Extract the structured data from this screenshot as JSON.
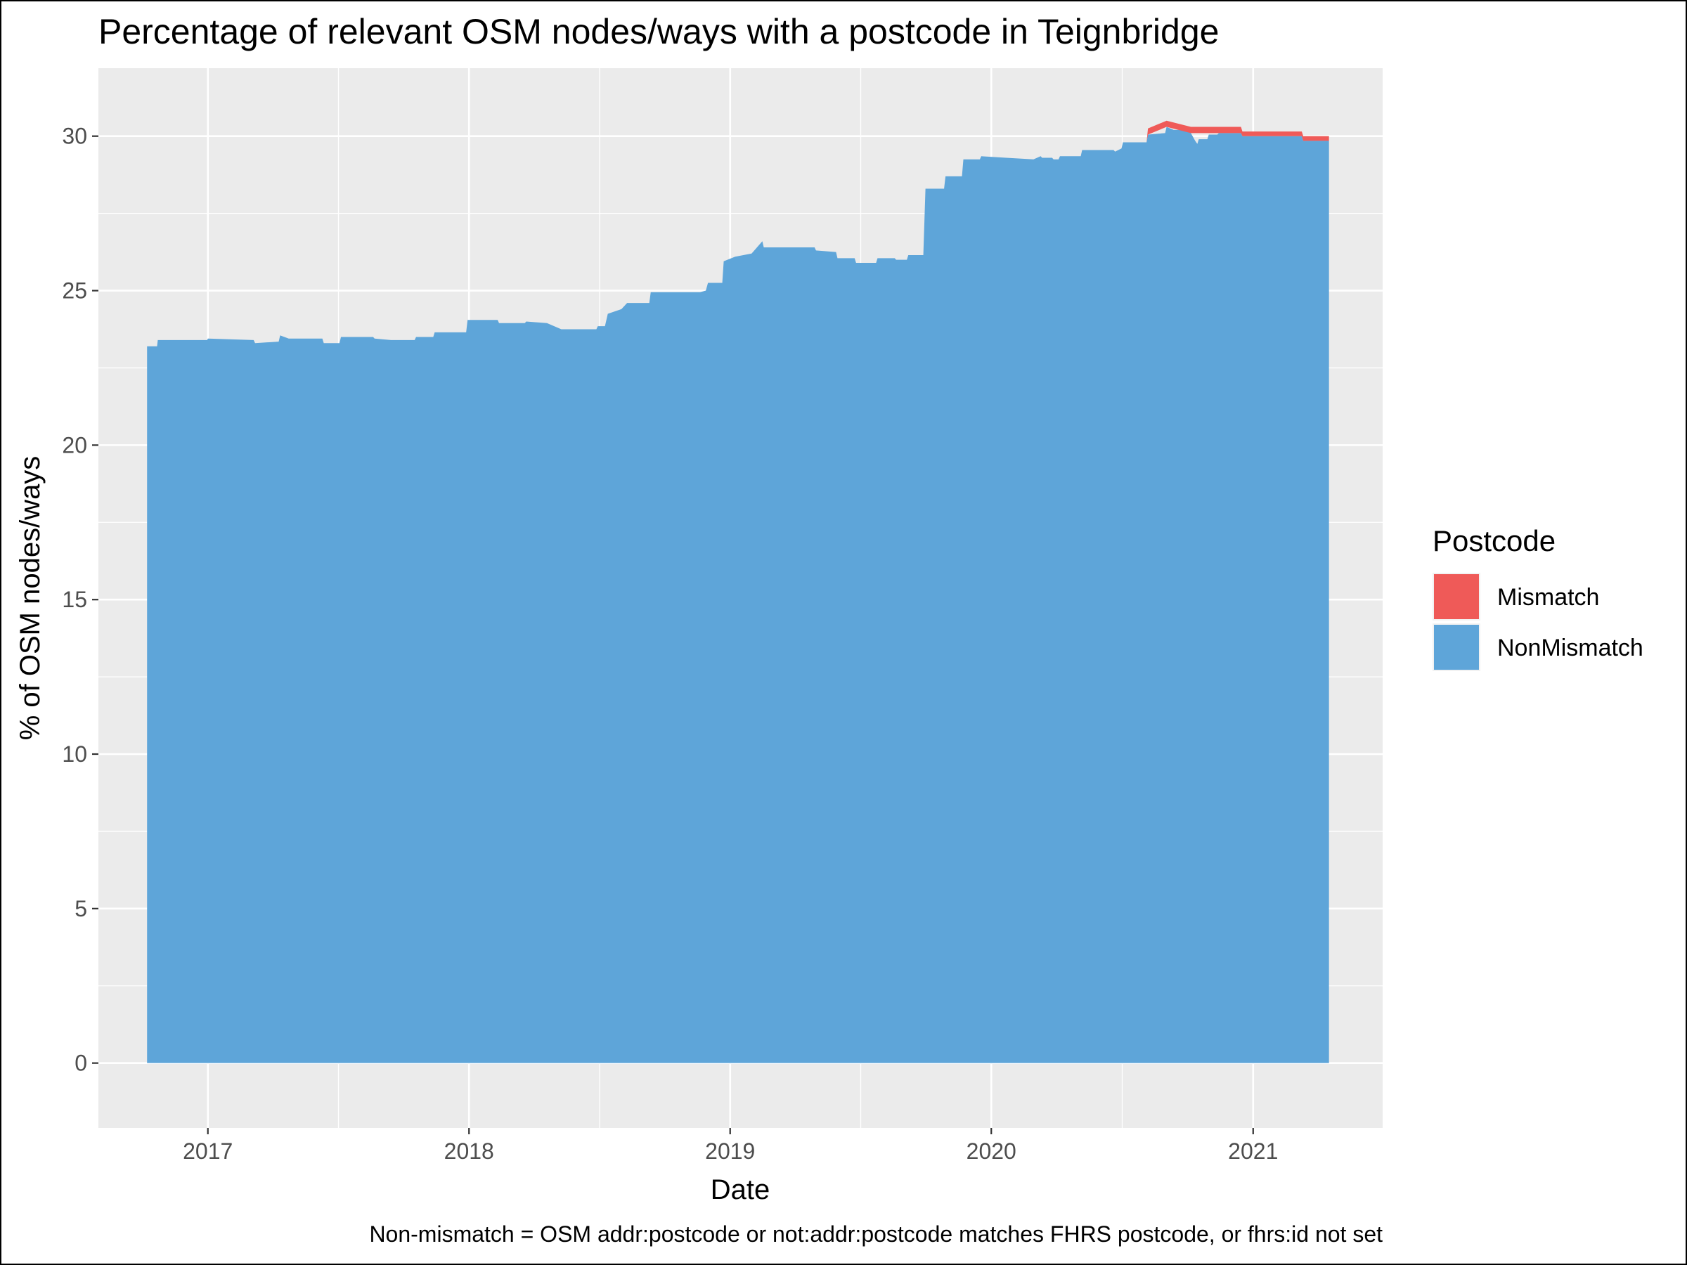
{
  "chart_data": {
    "type": "area",
    "title": "Percentage of relevant OSM nodes/ways with a postcode in Teignbridge",
    "xlabel": "Date",
    "ylabel": "% of OSM nodes/ways",
    "caption": "Non-mismatch = OSM addr:postcode or not:addr:postcode matches FHRS postcode, or fhrs:id not set",
    "stacked": true,
    "grid": true,
    "legend": {
      "title": "Postcode",
      "position": "right"
    },
    "xlim": [
      "2016-08-01",
      "2021-07-01"
    ],
    "ylim": [
      -2.1,
      32.2
    ],
    "x_ticks": [
      {
        "label": "2017",
        "date": "2017-01-01"
      },
      {
        "label": "2018",
        "date": "2018-01-01"
      },
      {
        "label": "2019",
        "date": "2019-01-01"
      },
      {
        "label": "2020",
        "date": "2020-01-01"
      },
      {
        "label": "2021",
        "date": "2021-01-01"
      }
    ],
    "y_ticks": [
      0,
      5,
      10,
      15,
      20,
      25,
      30
    ],
    "series": [
      {
        "name": "NonMismatch",
        "color": "#5ea5d9",
        "points": [
          [
            "2016-10-08",
            23.2
          ],
          [
            "2016-10-22",
            23.2
          ],
          [
            "2016-10-23",
            23.4
          ],
          [
            "2016-12-31",
            23.4
          ],
          [
            "2017-01-01",
            23.45
          ],
          [
            "2017-03-06",
            23.4
          ],
          [
            "2017-03-08",
            23.3
          ],
          [
            "2017-04-10",
            23.35
          ],
          [
            "2017-04-12",
            23.55
          ],
          [
            "2017-04-24",
            23.45
          ],
          [
            "2017-06-10",
            23.45
          ],
          [
            "2017-06-12",
            23.3
          ],
          [
            "2017-07-04",
            23.3
          ],
          [
            "2017-07-06",
            23.5
          ],
          [
            "2017-08-20",
            23.5
          ],
          [
            "2017-08-22",
            23.45
          ],
          [
            "2017-09-14",
            23.4
          ],
          [
            "2017-10-17",
            23.4
          ],
          [
            "2017-10-19",
            23.5
          ],
          [
            "2017-11-12",
            23.5
          ],
          [
            "2017-11-14",
            23.65
          ],
          [
            "2017-12-28",
            23.65
          ],
          [
            "2017-12-30",
            24.05
          ],
          [
            "2018-02-10",
            24.05
          ],
          [
            "2018-02-12",
            23.95
          ],
          [
            "2018-03-20",
            23.95
          ],
          [
            "2018-03-22",
            24.0
          ],
          [
            "2018-04-20",
            23.95
          ],
          [
            "2018-05-10",
            23.75
          ],
          [
            "2018-06-28",
            23.75
          ],
          [
            "2018-06-30",
            23.85
          ],
          [
            "2018-07-10",
            23.85
          ],
          [
            "2018-07-14",
            24.25
          ],
          [
            "2018-08-02",
            24.4
          ],
          [
            "2018-08-10",
            24.6
          ],
          [
            "2018-09-10",
            24.6
          ],
          [
            "2018-09-12",
            24.95
          ],
          [
            "2018-11-20",
            24.95
          ],
          [
            "2018-11-28",
            25.0
          ],
          [
            "2018-12-01",
            25.25
          ],
          [
            "2018-12-21",
            25.25
          ],
          [
            "2018-12-23",
            25.95
          ],
          [
            "2019-01-08",
            26.1
          ],
          [
            "2019-01-31",
            26.2
          ],
          [
            "2019-02-15",
            26.6
          ],
          [
            "2019-02-17",
            26.4
          ],
          [
            "2019-04-29",
            26.4
          ],
          [
            "2019-05-01",
            26.3
          ],
          [
            "2019-05-29",
            26.25
          ],
          [
            "2019-05-31",
            26.05
          ],
          [
            "2019-06-24",
            26.05
          ],
          [
            "2019-06-26",
            25.9
          ],
          [
            "2019-07-24",
            25.9
          ],
          [
            "2019-07-26",
            26.05
          ],
          [
            "2019-08-19",
            26.05
          ],
          [
            "2019-08-21",
            26.0
          ],
          [
            "2019-09-05",
            26.0
          ],
          [
            "2019-09-07",
            26.15
          ],
          [
            "2019-09-28",
            26.15
          ],
          [
            "2019-10-01",
            28.3
          ],
          [
            "2019-10-27",
            28.3
          ],
          [
            "2019-10-29",
            28.7
          ],
          [
            "2019-11-21",
            28.7
          ],
          [
            "2019-11-23",
            29.25
          ],
          [
            "2019-12-16",
            29.25
          ],
          [
            "2019-12-18",
            29.35
          ],
          [
            "2020-01-22",
            29.3
          ],
          [
            "2020-02-29",
            29.25
          ],
          [
            "2020-03-10",
            29.35
          ],
          [
            "2020-03-12",
            29.3
          ],
          [
            "2020-03-26",
            29.3
          ],
          [
            "2020-03-28",
            29.25
          ],
          [
            "2020-04-04",
            29.25
          ],
          [
            "2020-04-06",
            29.35
          ],
          [
            "2020-05-05",
            29.35
          ],
          [
            "2020-05-07",
            29.55
          ],
          [
            "2020-06-20",
            29.55
          ],
          [
            "2020-06-22",
            29.5
          ],
          [
            "2020-07-01",
            29.6
          ],
          [
            "2020-07-03",
            29.8
          ],
          [
            "2020-08-05",
            29.8
          ],
          [
            "2020-08-07",
            30.05
          ],
          [
            "2020-08-31",
            30.1
          ],
          [
            "2020-09-02",
            30.3
          ],
          [
            "2020-09-12",
            30.2
          ],
          [
            "2020-09-22",
            30.2
          ],
          [
            "2020-09-24",
            30.35
          ],
          [
            "2020-10-01",
            30.3
          ],
          [
            "2020-10-06",
            30.1
          ],
          [
            "2020-10-12",
            29.85
          ],
          [
            "2020-10-15",
            29.75
          ],
          [
            "2020-10-17",
            29.9
          ],
          [
            "2020-10-29",
            29.9
          ],
          [
            "2020-10-31",
            30.05
          ],
          [
            "2020-11-12",
            30.05
          ],
          [
            "2020-11-14",
            30.1
          ],
          [
            "2020-12-15",
            30.1
          ],
          [
            "2020-12-17",
            30.0
          ],
          [
            "2021-03-10",
            30.0
          ],
          [
            "2021-03-12",
            29.85
          ],
          [
            "2021-04-17",
            29.85
          ]
        ]
      },
      {
        "name": "Mismatch",
        "color": "#ef5a58",
        "points": [
          [
            "2016-10-08",
            0
          ],
          [
            "2020-08-05",
            0
          ],
          [
            "2020-08-07",
            0.2
          ],
          [
            "2020-09-02",
            0.2
          ],
          [
            "2020-10-06",
            0.2
          ],
          [
            "2020-11-14",
            0.2
          ],
          [
            "2020-12-15",
            0.2
          ],
          [
            "2020-12-17",
            0.15
          ],
          [
            "2021-03-10",
            0.15
          ],
          [
            "2021-03-12",
            0.15
          ],
          [
            "2021-04-17",
            0.15
          ]
        ]
      }
    ]
  }
}
